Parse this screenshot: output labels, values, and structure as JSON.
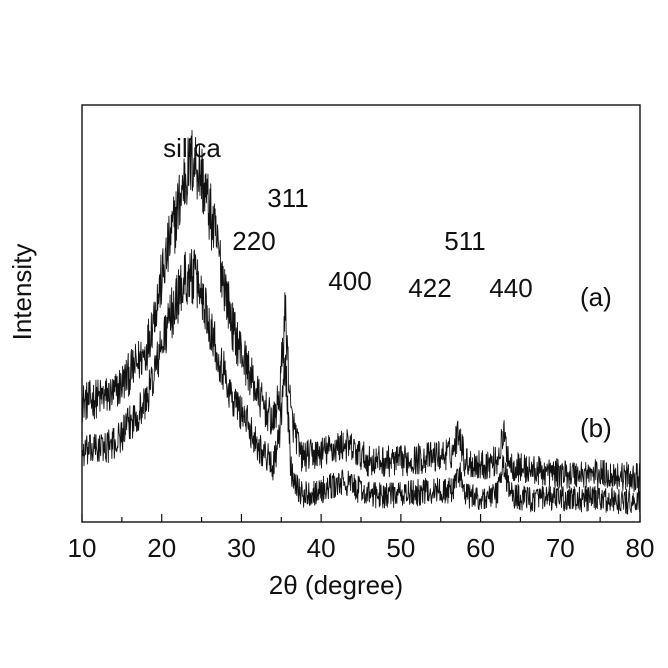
{
  "chart_data": {
    "type": "line",
    "title": "",
    "xlabel": "2θ (degree)",
    "ylabel": "Intensity",
    "xlim": [
      10,
      80
    ],
    "xticks": [
      10,
      20,
      30,
      40,
      50,
      60,
      70,
      80
    ],
    "x_minor_step": 5,
    "y_tick_labels": false,
    "grid": false,
    "legend": "none",
    "line_color": "#111111",
    "noise": 0.045,
    "series": [
      {
        "name": "(a)",
        "x": [
          10,
          14,
          18,
          21,
          23,
          24,
          25,
          27,
          29,
          30,
          32,
          34,
          34.8,
          35.5,
          36.2,
          37.5,
          40,
          43,
          46,
          50,
          54,
          56.5,
          57.3,
          58,
          60,
          62,
          62.9,
          63.8,
          66,
          70,
          75,
          80
        ],
        "y": [
          0.28,
          0.3,
          0.4,
          0.66,
          0.82,
          0.86,
          0.82,
          0.65,
          0.45,
          0.4,
          0.3,
          0.23,
          0.3,
          0.5,
          0.25,
          0.15,
          0.16,
          0.18,
          0.14,
          0.14,
          0.15,
          0.16,
          0.22,
          0.14,
          0.13,
          0.14,
          0.2,
          0.13,
          0.12,
          0.11,
          0.11,
          0.1
        ]
      },
      {
        "name": "(b)",
        "x": [
          10,
          14,
          18,
          21,
          23,
          24,
          25,
          27,
          29,
          30,
          32,
          34,
          34.8,
          35.5,
          36.2,
          37.5,
          40,
          43,
          46,
          50,
          54,
          56.5,
          57.3,
          58,
          60,
          62,
          62.9,
          63.8,
          66,
          70,
          75,
          80
        ],
        "y": [
          0.16,
          0.18,
          0.28,
          0.48,
          0.58,
          0.58,
          0.54,
          0.4,
          0.28,
          0.26,
          0.18,
          0.13,
          0.2,
          0.38,
          0.12,
          0.06,
          0.07,
          0.09,
          0.06,
          0.06,
          0.07,
          0.07,
          0.12,
          0.06,
          0.05,
          0.06,
          0.13,
          0.06,
          0.05,
          0.05,
          0.05,
          0.04
        ]
      }
    ],
    "annotations": [
      {
        "text": "silica",
        "x": 24
      },
      {
        "text": "311",
        "x": 36
      },
      {
        "text": "220",
        "x": 30
      },
      {
        "text": "400",
        "x": 43
      },
      {
        "text": "511",
        "x": 57.5
      },
      {
        "text": "422",
        "x": 53.5
      },
      {
        "text": "440",
        "x": 63.5
      }
    ]
  }
}
